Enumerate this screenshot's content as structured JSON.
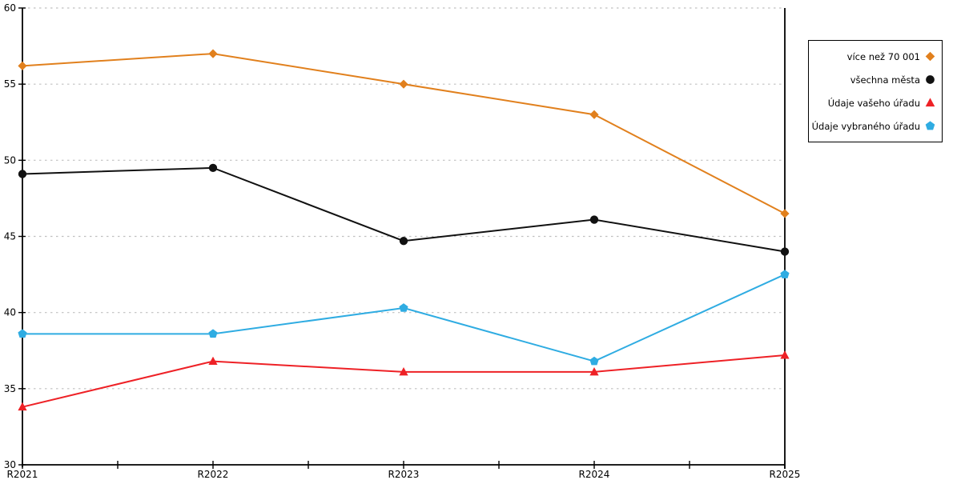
{
  "chart_data": {
    "type": "line",
    "title": "",
    "xlabel": "",
    "ylabel": "",
    "categories": [
      "R2021",
      "R2022",
      "R2023",
      "R2024",
      "R2025"
    ],
    "series": [
      {
        "name": "více než 70 001",
        "marker": "diamond",
        "color": "#E1801D",
        "values": [
          56.2,
          57.0,
          55.0,
          53.0,
          46.5
        ]
      },
      {
        "name": "všechna města",
        "marker": "circle",
        "color": "#111111",
        "values": [
          49.1,
          49.5,
          44.7,
          46.1,
          44.0
        ]
      },
      {
        "name": "Údaje vašeho úřadu",
        "marker": "triangle",
        "color": "#EE2126",
        "values": [
          33.8,
          36.8,
          36.1,
          36.1,
          37.2
        ]
      },
      {
        "name": "Údaje vybraného úřadu",
        "marker": "pentagon",
        "color": "#2FACE2",
        "values": [
          38.6,
          38.6,
          40.3,
          36.8,
          42.5
        ]
      }
    ],
    "ylim": [
      30,
      60
    ],
    "yticks": [
      30,
      35,
      40,
      45,
      50,
      55,
      60
    ],
    "grid": "horizontal-dashed",
    "gridline_color": "#C0C0C0",
    "axis_color": "#000000",
    "background_color": "#FFFFFF",
    "legend_position": "outside-top-right",
    "minor_x_ticks_between_categories": true
  }
}
